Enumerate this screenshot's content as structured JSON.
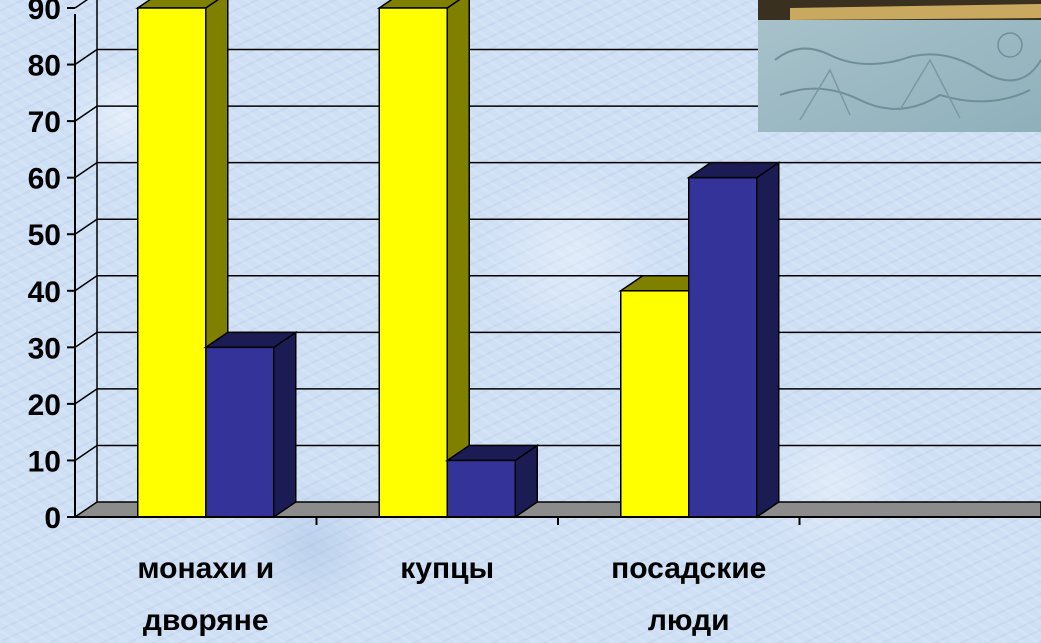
{
  "chart_data": {
    "type": "bar",
    "categories": [
      [
        "монахи и",
        "дворяне"
      ],
      [
        "купцы"
      ],
      [
        "посадские",
        "люди"
      ]
    ],
    "series": [
      {
        "values": [
          90,
          90,
          40
        ],
        "color": "#ffff00",
        "side_color": "#808000"
      },
      {
        "values": [
          30,
          10,
          60
        ],
        "color": "#333399",
        "side_color": "#1c1c55"
      }
    ],
    "ylim": [
      0,
      90
    ],
    "yticks": [
      "0",
      "10",
      "20",
      "30",
      "40",
      "50",
      "60",
      "70",
      "80",
      "90"
    ],
    "grid": true,
    "style": "3d-column"
  },
  "photo": {
    "icon": "engraving-photo"
  }
}
